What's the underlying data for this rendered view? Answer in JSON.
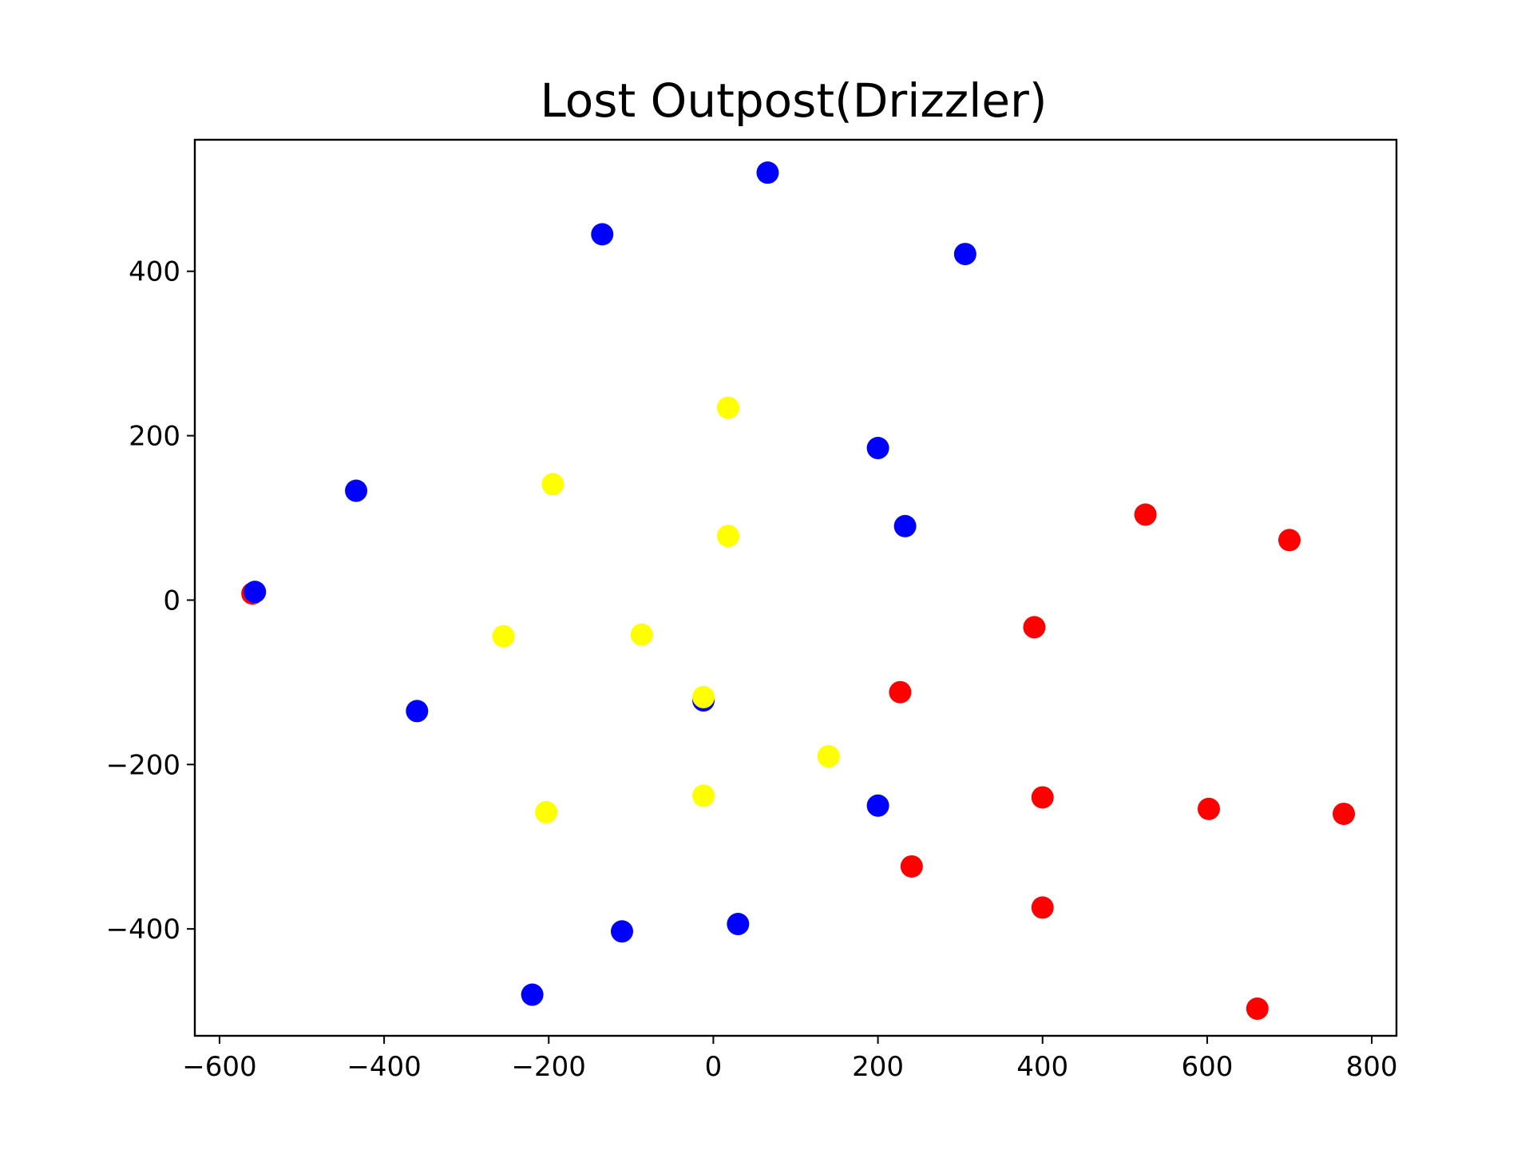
{
  "chart_data": {
    "type": "scatter",
    "title": "Lost Outpost(Drizzler)",
    "xlabel": "",
    "ylabel": "",
    "xlim": [
      -630,
      830
    ],
    "ylim": [
      -530,
      560
    ],
    "xticks": [
      -600,
      -400,
      -200,
      0,
      200,
      400,
      600,
      800
    ],
    "yticks": [
      -400,
      -200,
      0,
      200,
      400
    ],
    "grid": false,
    "legend": "none",
    "series": [
      {
        "color": "#ff0000",
        "points": [
          [
            -560,
            8
          ],
          [
            525,
            104
          ],
          [
            700,
            73
          ],
          [
            390,
            -33
          ],
          [
            227,
            -112
          ],
          [
            400,
            -240
          ],
          [
            602,
            -254
          ],
          [
            766,
            -260
          ],
          [
            241,
            -324
          ],
          [
            400,
            -374
          ],
          [
            661,
            -497
          ]
        ]
      },
      {
        "color": "#0000ff",
        "points": [
          [
            66,
            520
          ],
          [
            -135,
            445
          ],
          [
            306,
            421
          ],
          [
            200,
            185
          ],
          [
            -434,
            133
          ],
          [
            233,
            90
          ],
          [
            -557,
            10
          ],
          [
            -360,
            -135
          ],
          [
            -12,
            -122
          ],
          [
            200,
            -250
          ],
          [
            -111,
            -403
          ],
          [
            30,
            -394
          ],
          [
            -220,
            -480
          ]
        ]
      },
      {
        "color": "#ffff00",
        "points": [
          [
            18,
            234
          ],
          [
            -195,
            141
          ],
          [
            18,
            78
          ],
          [
            -255,
            -44
          ],
          [
            -87,
            -42
          ],
          [
            -12,
            -118
          ],
          [
            140,
            -190
          ],
          [
            -12,
            -238
          ],
          [
            -203,
            -258
          ]
        ]
      }
    ]
  }
}
